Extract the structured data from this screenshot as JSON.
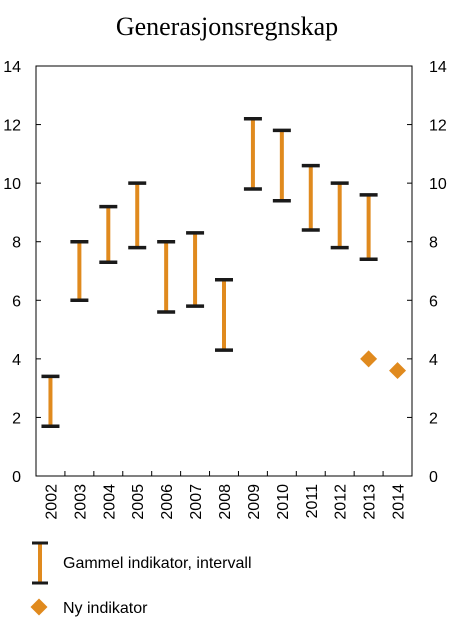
{
  "chart_data": {
    "type": "range_with_markers",
    "title": "Generasjonsregnskap",
    "categories": [
      "2002",
      "2003",
      "2004",
      "2005",
      "2006",
      "2007",
      "2008",
      "2009",
      "2010",
      "2011",
      "2012",
      "2013",
      "2014"
    ],
    "yticks": [
      "0",
      "2",
      "4",
      "6",
      "8",
      "10",
      "12",
      "14"
    ],
    "ylim": [
      0,
      14
    ],
    "grid": false,
    "series": [
      {
        "name": "Gammel indikator, intervall",
        "kind": "interval",
        "color": "#E08A1E",
        "cap_color": "#1A1A1A",
        "points": [
          {
            "x": "2002",
            "low": 1.7,
            "high": 3.4
          },
          {
            "x": "2003",
            "low": 6.0,
            "high": 8.0
          },
          {
            "x": "2004",
            "low": 7.3,
            "high": 9.2
          },
          {
            "x": "2005",
            "low": 7.8,
            "high": 10.0
          },
          {
            "x": "2006",
            "low": 5.6,
            "high": 8.0
          },
          {
            "x": "2007",
            "low": 5.8,
            "high": 8.3
          },
          {
            "x": "2008",
            "low": 4.3,
            "high": 6.7
          },
          {
            "x": "2009",
            "low": 9.8,
            "high": 12.2
          },
          {
            "x": "2010",
            "low": 9.4,
            "high": 11.8
          },
          {
            "x": "2011",
            "low": 8.4,
            "high": 10.6
          },
          {
            "x": "2012",
            "low": 7.8,
            "high": 10.0
          },
          {
            "x": "2013",
            "low": 7.4,
            "high": 9.6
          }
        ]
      },
      {
        "name": "Ny indikator",
        "kind": "marker",
        "color": "#E08A1E",
        "points": [
          {
            "x": "2013",
            "y": 4.0
          },
          {
            "x": "2014",
            "y": 3.6
          }
        ]
      }
    ],
    "legend": {
      "placement": "bottom",
      "items": [
        "Gammel indikator, intervall",
        "Ny indikator"
      ]
    }
  }
}
